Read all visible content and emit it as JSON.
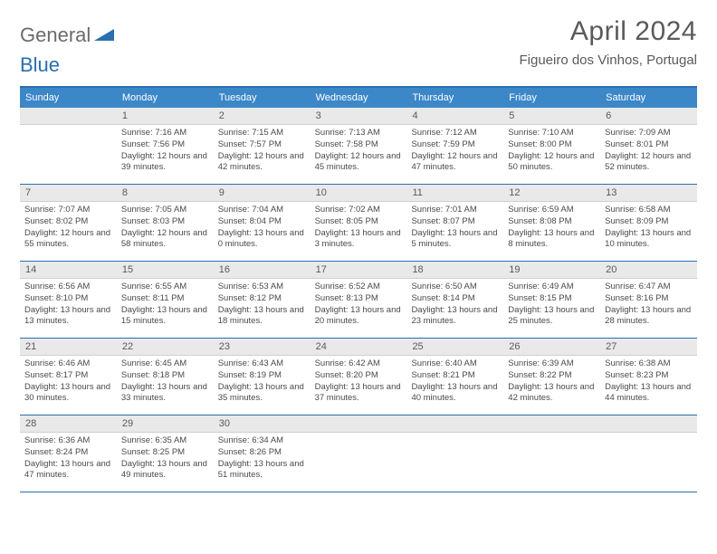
{
  "brand": {
    "part1": "General",
    "part2": "Blue"
  },
  "title": "April 2024",
  "location": "Figueiro dos Vinhos, Portugal",
  "colors": {
    "header_bg": "#3b87c8",
    "border": "#2a6faf",
    "daynum_bg": "#e9e9e9",
    "text": "#4a4a4a"
  },
  "weekdays": [
    "Sunday",
    "Monday",
    "Tuesday",
    "Wednesday",
    "Thursday",
    "Friday",
    "Saturday"
  ],
  "weeks": [
    [
      null,
      {
        "n": "1",
        "sr": "7:16 AM",
        "ss": "7:56 PM",
        "dl": "12 hours and 39 minutes."
      },
      {
        "n": "2",
        "sr": "7:15 AM",
        "ss": "7:57 PM",
        "dl": "12 hours and 42 minutes."
      },
      {
        "n": "3",
        "sr": "7:13 AM",
        "ss": "7:58 PM",
        "dl": "12 hours and 45 minutes."
      },
      {
        "n": "4",
        "sr": "7:12 AM",
        "ss": "7:59 PM",
        "dl": "12 hours and 47 minutes."
      },
      {
        "n": "5",
        "sr": "7:10 AM",
        "ss": "8:00 PM",
        "dl": "12 hours and 50 minutes."
      },
      {
        "n": "6",
        "sr": "7:09 AM",
        "ss": "8:01 PM",
        "dl": "12 hours and 52 minutes."
      }
    ],
    [
      {
        "n": "7",
        "sr": "7:07 AM",
        "ss": "8:02 PM",
        "dl": "12 hours and 55 minutes."
      },
      {
        "n": "8",
        "sr": "7:05 AM",
        "ss": "8:03 PM",
        "dl": "12 hours and 58 minutes."
      },
      {
        "n": "9",
        "sr": "7:04 AM",
        "ss": "8:04 PM",
        "dl": "13 hours and 0 minutes."
      },
      {
        "n": "10",
        "sr": "7:02 AM",
        "ss": "8:05 PM",
        "dl": "13 hours and 3 minutes."
      },
      {
        "n": "11",
        "sr": "7:01 AM",
        "ss": "8:07 PM",
        "dl": "13 hours and 5 minutes."
      },
      {
        "n": "12",
        "sr": "6:59 AM",
        "ss": "8:08 PM",
        "dl": "13 hours and 8 minutes."
      },
      {
        "n": "13",
        "sr": "6:58 AM",
        "ss": "8:09 PM",
        "dl": "13 hours and 10 minutes."
      }
    ],
    [
      {
        "n": "14",
        "sr": "6:56 AM",
        "ss": "8:10 PM",
        "dl": "13 hours and 13 minutes."
      },
      {
        "n": "15",
        "sr": "6:55 AM",
        "ss": "8:11 PM",
        "dl": "13 hours and 15 minutes."
      },
      {
        "n": "16",
        "sr": "6:53 AM",
        "ss": "8:12 PM",
        "dl": "13 hours and 18 minutes."
      },
      {
        "n": "17",
        "sr": "6:52 AM",
        "ss": "8:13 PM",
        "dl": "13 hours and 20 minutes."
      },
      {
        "n": "18",
        "sr": "6:50 AM",
        "ss": "8:14 PM",
        "dl": "13 hours and 23 minutes."
      },
      {
        "n": "19",
        "sr": "6:49 AM",
        "ss": "8:15 PM",
        "dl": "13 hours and 25 minutes."
      },
      {
        "n": "20",
        "sr": "6:47 AM",
        "ss": "8:16 PM",
        "dl": "13 hours and 28 minutes."
      }
    ],
    [
      {
        "n": "21",
        "sr": "6:46 AM",
        "ss": "8:17 PM",
        "dl": "13 hours and 30 minutes."
      },
      {
        "n": "22",
        "sr": "6:45 AM",
        "ss": "8:18 PM",
        "dl": "13 hours and 33 minutes."
      },
      {
        "n": "23",
        "sr": "6:43 AM",
        "ss": "8:19 PM",
        "dl": "13 hours and 35 minutes."
      },
      {
        "n": "24",
        "sr": "6:42 AM",
        "ss": "8:20 PM",
        "dl": "13 hours and 37 minutes."
      },
      {
        "n": "25",
        "sr": "6:40 AM",
        "ss": "8:21 PM",
        "dl": "13 hours and 40 minutes."
      },
      {
        "n": "26",
        "sr": "6:39 AM",
        "ss": "8:22 PM",
        "dl": "13 hours and 42 minutes."
      },
      {
        "n": "27",
        "sr": "6:38 AM",
        "ss": "8:23 PM",
        "dl": "13 hours and 44 minutes."
      }
    ],
    [
      {
        "n": "28",
        "sr": "6:36 AM",
        "ss": "8:24 PM",
        "dl": "13 hours and 47 minutes."
      },
      {
        "n": "29",
        "sr": "6:35 AM",
        "ss": "8:25 PM",
        "dl": "13 hours and 49 minutes."
      },
      {
        "n": "30",
        "sr": "6:34 AM",
        "ss": "8:26 PM",
        "dl": "13 hours and 51 minutes."
      },
      null,
      null,
      null,
      null
    ]
  ],
  "labels": {
    "sunrise": "Sunrise:",
    "sunset": "Sunset:",
    "daylight": "Daylight:"
  }
}
